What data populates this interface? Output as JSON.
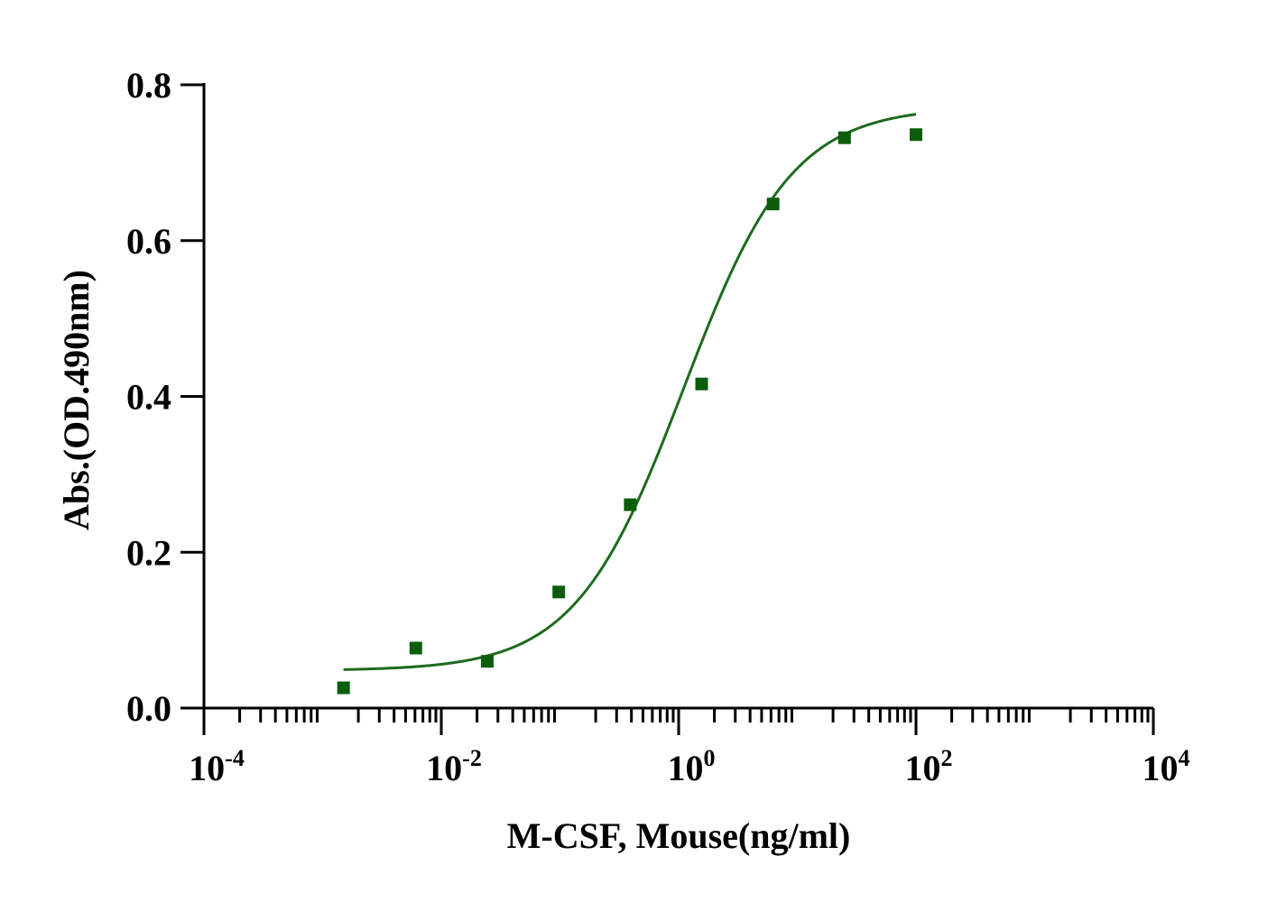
{
  "chart_data": {
    "type": "scatter",
    "title": "",
    "xlabel": "M-CSF, Mouse(ng/ml)",
    "ylabel": "Abs.(OD.490nm)",
    "xscale": "log10",
    "xlim": [
      0.0001,
      10000
    ],
    "ylim": [
      0,
      0.8
    ],
    "grid": false,
    "legend": "none",
    "x_ticks": [
      {
        "base": "10",
        "exp": "-4",
        "value": 0.0001
      },
      {
        "base": "10",
        "exp": "-2",
        "value": 0.01
      },
      {
        "base": "10",
        "exp": "0",
        "value": 1
      },
      {
        "base": "10",
        "exp": "2",
        "value": 100
      },
      {
        "base": "10",
        "exp": "4",
        "value": 10000
      }
    ],
    "y_ticks": [
      "0.0",
      "0.2",
      "0.4",
      "0.6",
      "0.8"
    ],
    "series": [
      {
        "points": {
          "x": [
            0.0015,
            0.0061,
            0.0244,
            0.0977,
            0.391,
            1.5625,
            6.25,
            25,
            100
          ],
          "y": [
            0.026,
            0.077,
            0.06,
            0.149,
            0.261,
            0.416,
            0.647,
            0.732,
            0.736
          ]
        },
        "fit": {
          "model": "4PL",
          "bottom": 0.048,
          "top": 0.772,
          "ec50": 1.1,
          "hill": 0.95,
          "x_range": [
            0.0015,
            100
          ]
        }
      }
    ],
    "colors": {
      "marker": "#0b5d0b",
      "curve": "#1e6b1e",
      "axis": "#000000"
    }
  }
}
